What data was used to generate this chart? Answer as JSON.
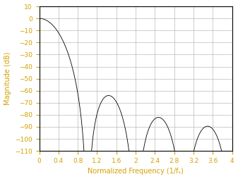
{
  "title": "",
  "xlabel": "Normalized Frequency (1/fₛ)",
  "ylabel": "Magnitude (dB)",
  "xlim": [
    0,
    4
  ],
  "ylim": [
    -110,
    10
  ],
  "xticks": [
    0,
    0.4,
    0.8,
    1.2,
    1.6,
    2.0,
    2.4,
    2.8,
    3.2,
    3.6,
    4.0
  ],
  "yticks": [
    10,
    0,
    -10,
    -20,
    -30,
    -40,
    -50,
    -60,
    -70,
    -80,
    -90,
    -100,
    -110
  ],
  "line_color": "#000000",
  "label_color": "#d4a000",
  "background_color": "#ffffff",
  "grid_color": "#aaaaaa",
  "figsize": [
    3.37,
    2.54
  ],
  "dpi": 100,
  "num_freqs": 20000,
  "R": 8,
  "K": 5,
  "M": 1
}
